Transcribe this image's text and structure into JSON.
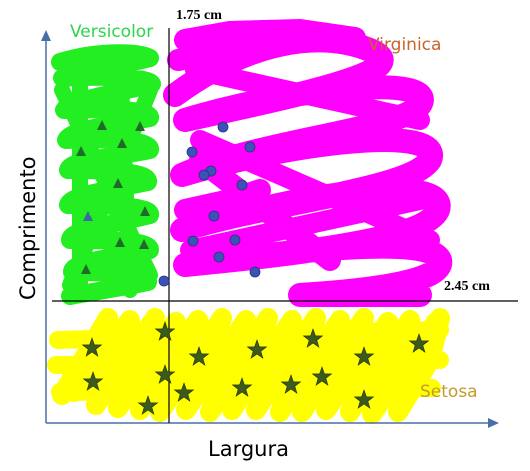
{
  "labels": {
    "versicolor": "Versicolor",
    "virginica": "Virginica",
    "setosa": "Setosa",
    "x_axis": "Largura",
    "y_axis": "Comprimento",
    "threshold_vertical": "1.75 cm",
    "threshold_horizontal": "2.45 cm"
  },
  "colors": {
    "versicolor_fill": "#22ee22",
    "versicolor_text": "#2bd54a",
    "virginica_fill": "#ff00ff",
    "virginica_text": "#c8642a",
    "setosa_fill": "#ffff00",
    "setosa_text": "#c49a2c",
    "axis": "#4a6fa5",
    "divider": "#000000",
    "triangle_marker": "#1f6b2a",
    "circle_marker": "#3c52b8",
    "star_marker": "#3c5a1e"
  },
  "markers": {
    "versicolor": "triangle",
    "virginica": "circle",
    "setosa": "star"
  }
}
